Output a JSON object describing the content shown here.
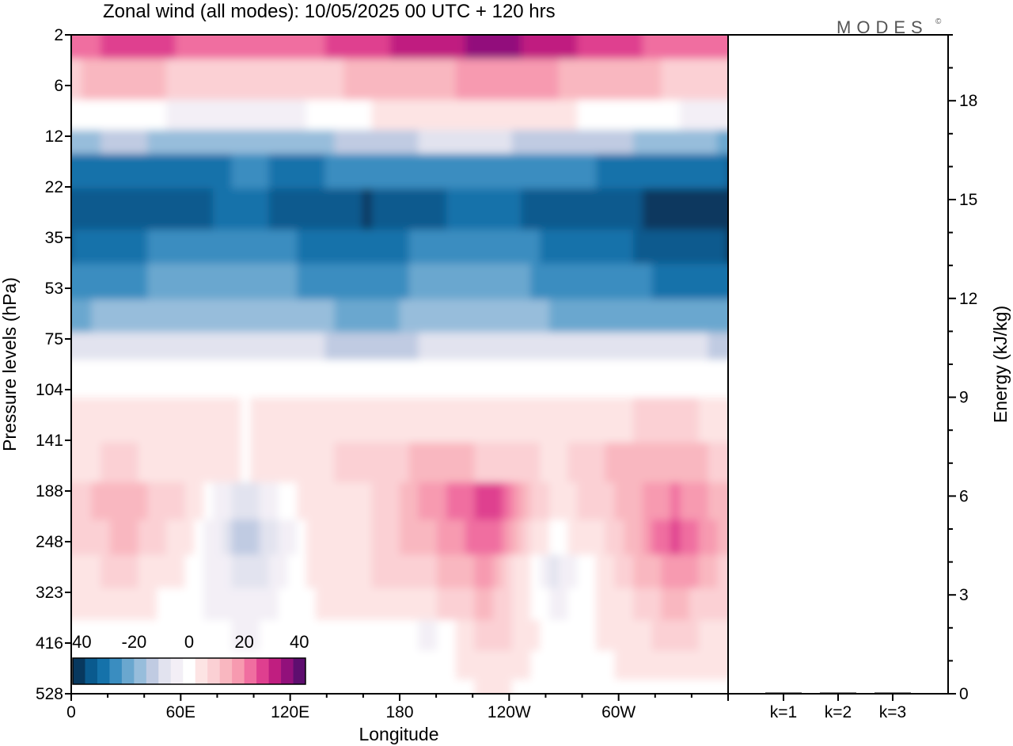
{
  "header": {
    "title": "Zonal wind (all modes):  10/05/2025  00 UTC  + 120 hrs",
    "logo": "MODES",
    "logo_mark": "©"
  },
  "chart_data": [
    {
      "type": "heatmap",
      "title": "Zonal wind (all modes):  10/05/2025  00 UTC  + 120 hrs",
      "xlabel": "Longitude",
      "ylabel": "Pressure levels (hPa)",
      "x_ticks": [
        "0",
        "60E",
        "120E",
        "180",
        "120W",
        "60W"
      ],
      "y_ticks": [
        "2",
        "6",
        "12",
        "22",
        "35",
        "53",
        "75",
        "104",
        "141",
        "188",
        "248",
        "323",
        "416",
        "528"
      ],
      "y_scale": "log (pressure, top = 2 hPa)",
      "colorbar": {
        "ticks": [
          "-40",
          "-20",
          "0",
          "20",
          "40"
        ],
        "range": [
          -40,
          40
        ],
        "colors": [
          "#08385e",
          "#0a5a8e",
          "#1572aa",
          "#3a8dc0",
          "#6aa7cf",
          "#97bddb",
          "#c0cbe2",
          "#e2e3ef",
          "#f3eff6",
          "#ffffff",
          "#fde4e4",
          "#fbd0d4",
          "#f9b7c0",
          "#f79ab0",
          "#f06ea0",
          "#df3f8f",
          "#c01e80",
          "#92107b",
          "#5e0e6f"
        ]
      },
      "rows_top_to_bottom": [
        {
          "level": "2",
          "profile": [
            22,
            24,
            23,
            20,
            22,
            26,
            30,
            33,
            30,
            24,
            22,
            20
          ]
        },
        {
          "level": "3",
          "profile": [
            10,
            12,
            10,
            8,
            9,
            12,
            14,
            16,
            15,
            12,
            10,
            9
          ]
        },
        {
          "level": "4",
          "profile": [
            -2,
            0,
            -3,
            -4,
            -2,
            2,
            3,
            4,
            3,
            1,
            -2,
            -4
          ]
        },
        {
          "level": "5",
          "profile": [
            -16,
            -14,
            -16,
            -18,
            -17,
            -12,
            -10,
            -10,
            -12,
            -14,
            -16,
            -20
          ]
        },
        {
          "level": "6",
          "profile": [
            -30,
            -28,
            -29,
            -27,
            -28,
            -26,
            -24,
            -24,
            -26,
            -28,
            -30,
            -32
          ]
        },
        {
          "level": "9",
          "profile": [
            -36,
            -32,
            -33,
            -30,
            -34,
            -36,
            -32,
            -30,
            -33,
            -34,
            -38,
            -40
          ]
        },
        {
          "level": "12",
          "profile": [
            -32,
            -28,
            -26,
            -24,
            -28,
            -30,
            -26,
            -25,
            -28,
            -30,
            -34,
            -36
          ]
        },
        {
          "level": "16",
          "profile": [
            -26,
            -24,
            -22,
            -20,
            -24,
            -26,
            -22,
            -22,
            -24,
            -26,
            -28,
            -30
          ]
        },
        {
          "level": "22",
          "profile": [
            -20,
            -18,
            -17,
            -16,
            -18,
            -20,
            -18,
            -18,
            -19,
            -20,
            -20,
            -22
          ]
        },
        {
          "level": "28",
          "profile": [
            -10,
            -9,
            -8,
            -8,
            -10,
            -12,
            -10,
            -9,
            -10,
            -10,
            -10,
            -11
          ]
        },
        {
          "level": "35",
          "profile": [
            -2,
            -1,
            0,
            0,
            -1,
            -2,
            -1,
            0,
            -1,
            -1,
            -2,
            -2
          ]
        },
        {
          "level": "53",
          "profile": [
            3,
            5,
            3,
            2,
            4,
            6,
            6,
            5,
            4,
            6,
            7,
            5
          ]
        },
        {
          "level": "75",
          "profile": [
            5,
            7,
            4,
            2,
            5,
            8,
            12,
            10,
            5,
            12,
            14,
            8
          ]
        },
        {
          "level": "104",
          "profile": [
            8,
            14,
            6,
            -10,
            4,
            6,
            16,
            26,
            4,
            10,
            20,
            10
          ]
        },
        {
          "level": "141",
          "profile": [
            6,
            12,
            4,
            -14,
            2,
            6,
            14,
            22,
            0,
            8,
            24,
            10
          ]
        },
        {
          "level": "188",
          "profile": [
            4,
            8,
            2,
            -10,
            2,
            6,
            10,
            16,
            -8,
            6,
            18,
            8
          ]
        },
        {
          "level": "248",
          "profile": [
            2,
            4,
            0,
            -6,
            2,
            4,
            6,
            12,
            -4,
            4,
            12,
            6
          ]
        },
        {
          "level": "323",
          "profile": [
            1,
            2,
            0,
            -3,
            1,
            2,
            -3,
            10,
            0,
            3,
            8,
            4
          ]
        },
        {
          "level": "416",
          "profile": [
            0,
            1,
            0,
            -1,
            1,
            1,
            -1,
            6,
            0,
            2,
            4,
            2
          ]
        },
        {
          "level": "528",
          "profile": [
            -1,
            0,
            0,
            0,
            1,
            0,
            0,
            3,
            0,
            1,
            2,
            -1
          ]
        }
      ]
    },
    {
      "type": "bar",
      "ylabel": "Energy (kJ/kg)",
      "categories": [
        "k=1",
        "k=2",
        "k=3"
      ],
      "values": [
        0.02,
        0.01,
        0.01
      ],
      "ylim": [
        0,
        20
      ],
      "y_ticks": [
        "0",
        "3",
        "6",
        "9",
        "12",
        "15",
        "18"
      ]
    }
  ]
}
